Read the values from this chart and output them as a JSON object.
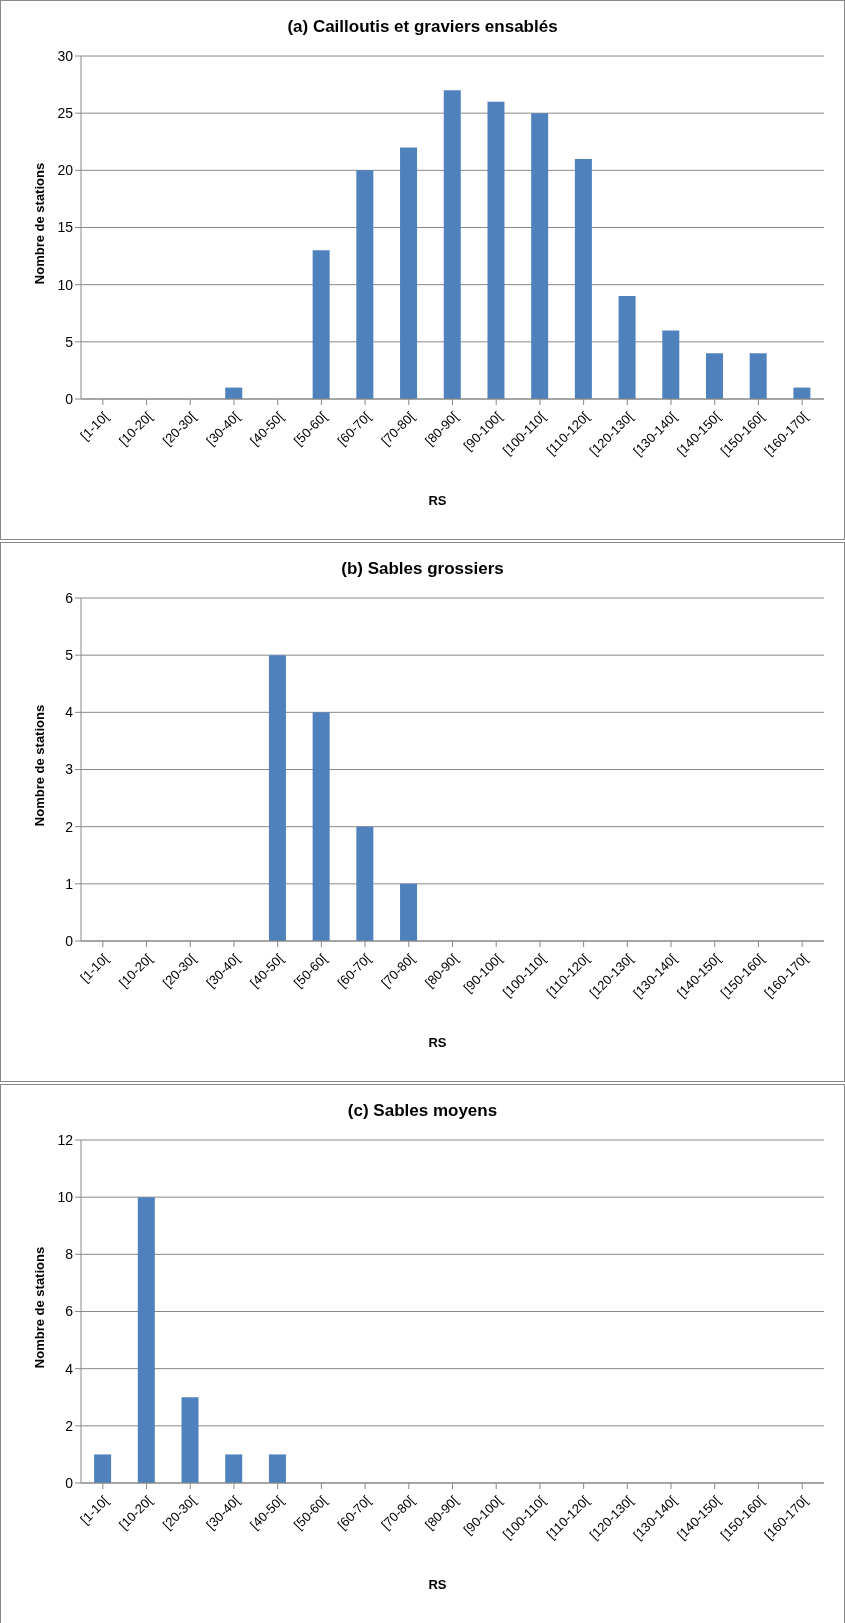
{
  "chart_data": [
    {
      "type": "bar",
      "title": "(a) Cailloutis et graviers ensablés",
      "xlabel": "RS",
      "ylabel": "Nombre de stations",
      "categories": [
        "[1-10[",
        "[10-20[",
        "[20-30[",
        "[30-40[",
        "[40-50[",
        "[50-60[",
        "[60-70[",
        "[70-80[",
        "[80-90[",
        "[90-100[",
        "[100-110[",
        "[110-120[",
        "[120-130[",
        "[130-140[",
        "[140-150[",
        "[150-160[",
        "[160-170["
      ],
      "values": [
        0,
        0,
        0,
        1,
        0,
        13,
        20,
        22,
        27,
        26,
        25,
        21,
        9,
        6,
        4,
        4,
        1
      ],
      "color": "#4f81bd",
      "ylim": [
        0,
        30
      ],
      "yticks": [
        0,
        5,
        10,
        15,
        20,
        25,
        30
      ],
      "grid": "y",
      "legend": false
    },
    {
      "type": "bar",
      "title": "(b) Sables grossiers",
      "xlabel": "RS",
      "ylabel": "Nombre de stations",
      "categories": [
        "[1-10[",
        "[10-20[",
        "[20-30[",
        "[30-40[",
        "[40-50[",
        "[50-60[",
        "[60-70[",
        "[70-80[",
        "[80-90[",
        "[90-100[",
        "[100-110[",
        "[110-120[",
        "[120-130[",
        "[130-140[",
        "[140-150[",
        "[150-160[",
        "[160-170["
      ],
      "values": [
        0,
        0,
        0,
        0,
        5,
        4,
        2,
        1,
        0,
        0,
        0,
        0,
        0,
        0,
        0,
        0,
        0
      ],
      "color": "#4f81bd",
      "ylim": [
        0,
        6
      ],
      "yticks": [
        0,
        1,
        2,
        3,
        4,
        5,
        6
      ],
      "grid": "y",
      "legend": false
    },
    {
      "type": "bar",
      "title": "(c) Sables moyens",
      "xlabel": "RS",
      "ylabel": "Nombre de stations",
      "categories": [
        "[1-10[",
        "[10-20[",
        "[20-30[",
        "[30-40[",
        "[40-50[",
        "[50-60[",
        "[60-70[",
        "[70-80[",
        "[80-90[",
        "[90-100[",
        "[100-110[",
        "[110-120[",
        "[120-130[",
        "[130-140[",
        "[140-150[",
        "[150-160[",
        "[160-170["
      ],
      "values": [
        1,
        10,
        3,
        1,
        1,
        0,
        0,
        0,
        0,
        0,
        0,
        0,
        0,
        0,
        0,
        0,
        0
      ],
      "color": "#4f81bd",
      "ylim": [
        0,
        12
      ],
      "yticks": [
        0,
        2,
        4,
        6,
        8,
        10,
        12
      ],
      "grid": "y",
      "legend": false
    }
  ]
}
